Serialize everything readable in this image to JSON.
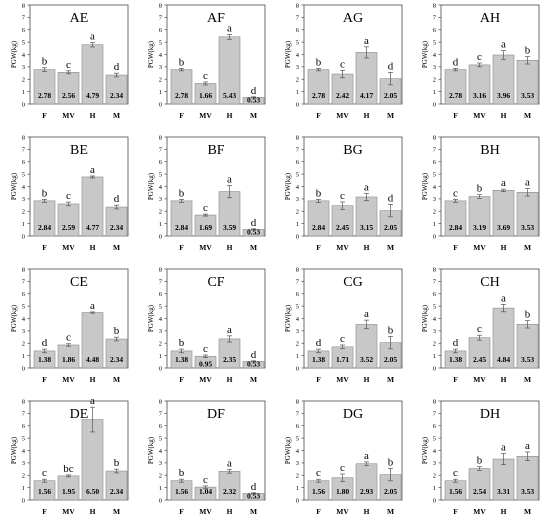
{
  "figure": {
    "ylabel": "PGW(kg)",
    "categories": [
      "F",
      "MV",
      "H",
      "M"
    ],
    "ylim": [
      0,
      8
    ],
    "yticks": [
      0,
      1,
      2,
      3,
      4,
      5,
      6,
      7,
      8
    ],
    "colors": {
      "bar": "#c8c8c8",
      "bar_edge": "#8c8c8c",
      "frame": "#4a4a4a",
      "text": "#000000"
    }
  },
  "chart_data": [
    {
      "type": "bar",
      "title": "AE",
      "categories": [
        "F",
        "MV",
        "H",
        "M"
      ],
      "values": [
        2.78,
        2.56,
        4.79,
        2.34
      ],
      "errors": [
        0.15,
        0.12,
        0.18,
        0.15
      ],
      "letters": [
        "b",
        "c",
        "a",
        "d"
      ],
      "ylabel": "PGW(kg)",
      "ylim": [
        0,
        8
      ]
    },
    {
      "type": "bar",
      "title": "AF",
      "categories": [
        "F",
        "MV",
        "H",
        "M"
      ],
      "values": [
        2.78,
        1.66,
        5.43,
        0.53
      ],
      "errors": [
        0.1,
        0.12,
        0.2,
        0.05
      ],
      "letters": [
        "b",
        "c",
        "a",
        "d"
      ],
      "ylabel": "PGW(kg)",
      "ylim": [
        0,
        8
      ]
    },
    {
      "type": "bar",
      "title": "AG",
      "categories": [
        "F",
        "MV",
        "H",
        "M"
      ],
      "values": [
        2.78,
        2.42,
        4.17,
        2.05
      ],
      "errors": [
        0.1,
        0.3,
        0.45,
        0.5
      ],
      "letters": [
        "b",
        "c",
        "a",
        "d"
      ],
      "ylabel": "PGW(kg)",
      "ylim": [
        0,
        8
      ]
    },
    {
      "type": "bar",
      "title": "AH",
      "categories": [
        "F",
        "MV",
        "H",
        "M"
      ],
      "values": [
        2.78,
        3.16,
        3.96,
        3.53
      ],
      "errors": [
        0.1,
        0.15,
        0.35,
        0.3
      ],
      "letters": [
        "d",
        "c",
        "a",
        "b"
      ],
      "ylabel": "PGW(kg)",
      "ylim": [
        0,
        8
      ]
    },
    {
      "type": "bar",
      "title": "BE",
      "categories": [
        "F",
        "MV",
        "H",
        "M"
      ],
      "values": [
        2.84,
        2.59,
        4.77,
        2.34
      ],
      "errors": [
        0.12,
        0.15,
        0.08,
        0.15
      ],
      "letters": [
        "b",
        "c",
        "a",
        "d"
      ],
      "ylabel": "PGW(kg)",
      "ylim": [
        0,
        8
      ]
    },
    {
      "type": "bar",
      "title": "BF",
      "categories": [
        "F",
        "MV",
        "H",
        "M"
      ],
      "values": [
        2.84,
        1.69,
        3.59,
        0.53
      ],
      "errors": [
        0.12,
        0.08,
        0.5,
        0.05
      ],
      "letters": [
        "b",
        "c",
        "a",
        "d"
      ],
      "ylabel": "PGW(kg)",
      "ylim": [
        0,
        8
      ]
    },
    {
      "type": "bar",
      "title": "BG",
      "categories": [
        "F",
        "MV",
        "H",
        "M"
      ],
      "values": [
        2.84,
        2.45,
        3.15,
        2.05
      ],
      "errors": [
        0.12,
        0.3,
        0.3,
        0.5
      ],
      "letters": [
        "b",
        "c",
        "a",
        "d"
      ],
      "ylabel": "PGW(kg)",
      "ylim": [
        0,
        8
      ]
    },
    {
      "type": "bar",
      "title": "BH",
      "categories": [
        "F",
        "MV",
        "H",
        "M"
      ],
      "values": [
        2.84,
        3.19,
        3.69,
        3.53
      ],
      "errors": [
        0.12,
        0.15,
        0.1,
        0.3
      ],
      "letters": [
        "c",
        "b",
        "a",
        "a"
      ],
      "ylabel": "PGW(kg)",
      "ylim": [
        0,
        8
      ]
    },
    {
      "type": "bar",
      "title": "CE",
      "categories": [
        "F",
        "MV",
        "H",
        "M"
      ],
      "values": [
        1.38,
        1.86,
        4.48,
        2.34
      ],
      "errors": [
        0.15,
        0.1,
        0.05,
        0.15
      ],
      "letters": [
        "d",
        "c",
        "a",
        "b"
      ],
      "ylabel": "PGW(kg)",
      "ylim": [
        0,
        8
      ]
    },
    {
      "type": "bar",
      "title": "CF",
      "categories": [
        "F",
        "MV",
        "H",
        "M"
      ],
      "values": [
        1.38,
        0.95,
        2.35,
        0.53
      ],
      "errors": [
        0.15,
        0.1,
        0.25,
        0.05
      ],
      "letters": [
        "b",
        "c",
        "a",
        "d"
      ],
      "ylabel": "PGW(kg)",
      "ylim": [
        0,
        8
      ]
    },
    {
      "type": "bar",
      "title": "CG",
      "categories": [
        "F",
        "MV",
        "H",
        "M"
      ],
      "values": [
        1.38,
        1.71,
        3.52,
        2.05
      ],
      "errors": [
        0.15,
        0.15,
        0.35,
        0.5
      ],
      "letters": [
        "d",
        "c",
        "a",
        "b"
      ],
      "ylabel": "PGW(kg)",
      "ylim": [
        0,
        8
      ]
    },
    {
      "type": "bar",
      "title": "CH",
      "categories": [
        "F",
        "MV",
        "H",
        "M"
      ],
      "values": [
        1.38,
        2.45,
        4.84,
        3.53
      ],
      "errors": [
        0.15,
        0.2,
        0.3,
        0.3
      ],
      "letters": [
        "d",
        "c",
        "a",
        "b"
      ],
      "ylabel": "PGW(kg)",
      "ylim": [
        0,
        8
      ]
    },
    {
      "type": "bar",
      "title": "DE",
      "categories": [
        "F",
        "MV",
        "H",
        "M"
      ],
      "values": [
        1.56,
        1.95,
        6.5,
        2.34
      ],
      "errors": [
        0.12,
        0.08,
        1.0,
        0.15
      ],
      "letters": [
        "c",
        "bc",
        "a",
        "b"
      ],
      "ylabel": "PGW(kg)",
      "ylim": [
        0,
        8
      ]
    },
    {
      "type": "bar",
      "title": "DF",
      "categories": [
        "F",
        "MV",
        "H",
        "M"
      ],
      "values": [
        1.56,
        1.04,
        2.32,
        0.53
      ],
      "errors": [
        0.12,
        0.1,
        0.15,
        0.05
      ],
      "letters": [
        "b",
        "c",
        "a",
        "d"
      ],
      "ylabel": "PGW(kg)",
      "ylim": [
        0,
        8
      ]
    },
    {
      "type": "bar",
      "title": "DG",
      "categories": [
        "F",
        "MV",
        "H",
        "M"
      ],
      "values": [
        1.56,
        1.8,
        2.93,
        2.05
      ],
      "errors": [
        0.12,
        0.3,
        0.15,
        0.5
      ],
      "letters": [
        "c",
        "c",
        "a",
        "b"
      ],
      "ylabel": "PGW(kg)",
      "ylim": [
        0,
        8
      ]
    },
    {
      "type": "bar",
      "title": "DH",
      "categories": [
        "F",
        "MV",
        "H",
        "M"
      ],
      "values": [
        1.56,
        2.54,
        3.31,
        3.53
      ],
      "errors": [
        0.12,
        0.15,
        0.45,
        0.35
      ],
      "letters": [
        "c",
        "b",
        "a",
        "a"
      ],
      "ylabel": "PGW(kg)",
      "ylim": [
        0,
        8
      ]
    }
  ]
}
